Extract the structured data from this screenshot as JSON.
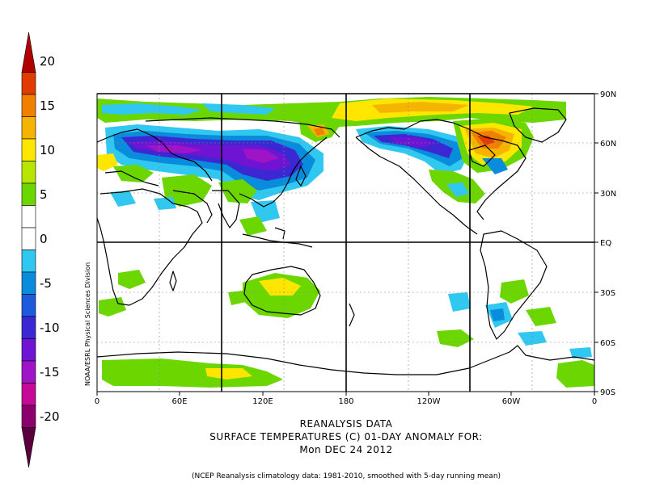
{
  "credit": "NOAA/ESRL Physical Sciences Division",
  "colorbar": {
    "labels": [
      "20",
      "15",
      "10",
      "5",
      "0",
      "-5",
      "-10",
      "-15",
      "-20"
    ],
    "colors": [
      "#b00000",
      "#e03c00",
      "#f08000",
      "#f5b400",
      "#ffe600",
      "#b8e600",
      "#6cd600",
      "#ffffff",
      "#ffffff",
      "#30c8f0",
      "#0a8cdc",
      "#1e5adc",
      "#3c28d2",
      "#6e14d2",
      "#a014c8",
      "#c40a96",
      "#8c006e",
      "#5a003c"
    ]
  },
  "map": {
    "lat_labels": [
      "90N",
      "60N",
      "30N",
      "EQ",
      "30S",
      "60S",
      "90S"
    ],
    "lon_labels": [
      "0",
      "60E",
      "120E",
      "180",
      "120W",
      "60W",
      "0"
    ]
  },
  "title": {
    "line1": "REANALYSIS DATA",
    "line2": "SURFACE TEMPERATURES (C)   01-DAY ANOMALY FOR:",
    "line3": "Mon DEC 24 2012"
  },
  "footnote": "(NCEP Reanalysis climatology data: 1981-2010, smoothed with 5-day running mean)"
}
